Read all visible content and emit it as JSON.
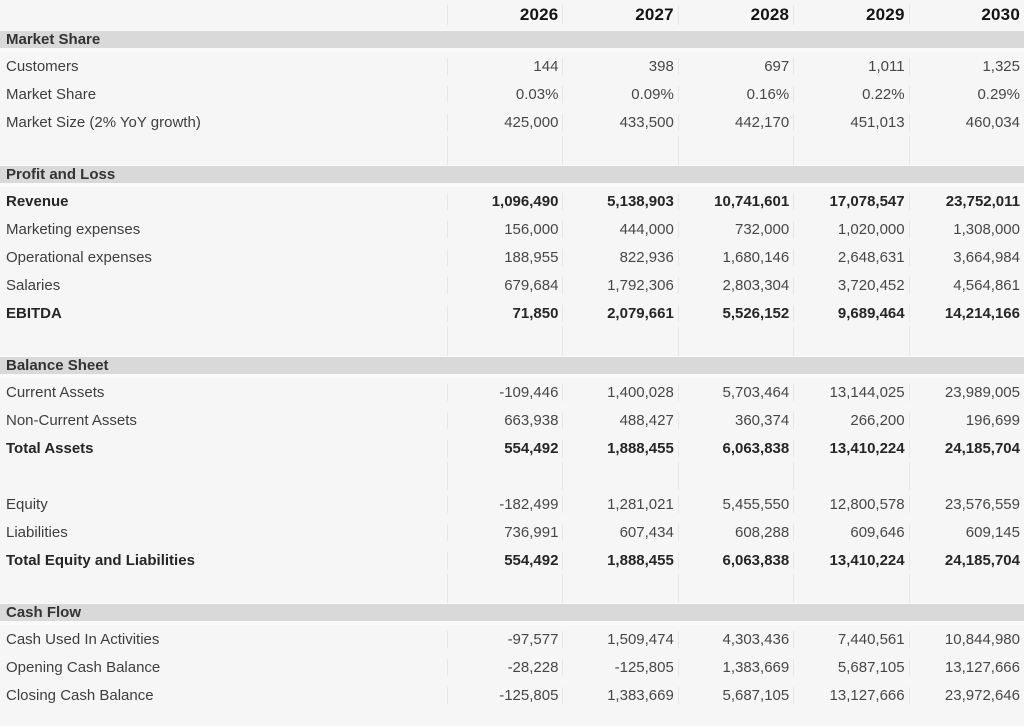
{
  "colors": {
    "row_bg": "#f6f6f7",
    "band_bg": "#d9d9d9",
    "band_sep": "#fafafa",
    "grid_line": "#e7e7e7",
    "text_heading": "#141414",
    "text_band": "#333333",
    "text_label": "#3e3e3e",
    "text_value": "#474747",
    "text_heading_row": "#262626"
  },
  "table": {
    "columns": [
      "2026",
      "2027",
      "2028",
      "2029",
      "2030"
    ],
    "rows": [
      {
        "type": "header"
      },
      {
        "type": "band",
        "label": "Market Share"
      },
      {
        "type": "data",
        "bold": false,
        "label": "Customers",
        "values": [
          "144",
          "398",
          "697",
          "1,011",
          "1,325"
        ]
      },
      {
        "type": "data",
        "bold": false,
        "label": "Market Share",
        "values": [
          "0.03%",
          "0.09%",
          "0.16%",
          "0.22%",
          "0.29%"
        ]
      },
      {
        "type": "data",
        "bold": false,
        "label": "Market Size (2% YoY growth)",
        "values": [
          "425,000",
          "433,500",
          "442,170",
          "451,013",
          "460,034"
        ]
      },
      {
        "type": "gap"
      },
      {
        "type": "band",
        "label": "Profit and Loss"
      },
      {
        "type": "data",
        "bold": true,
        "label": "Revenue",
        "values": [
          "1,096,490",
          "5,138,903",
          "10,741,601",
          "17,078,547",
          "23,752,011"
        ]
      },
      {
        "type": "data",
        "bold": false,
        "label": "Marketing expenses",
        "values": [
          "156,000",
          "444,000",
          "732,000",
          "1,020,000",
          "1,308,000"
        ]
      },
      {
        "type": "data",
        "bold": false,
        "label": "Operational expenses",
        "values": [
          "188,955",
          "822,936",
          "1,680,146",
          "2,648,631",
          "3,664,984"
        ]
      },
      {
        "type": "data",
        "bold": false,
        "label": "Salaries",
        "values": [
          "679,684",
          "1,792,306",
          "2,803,304",
          "3,720,452",
          "4,564,861"
        ]
      },
      {
        "type": "data",
        "bold": true,
        "label": "EBITDA",
        "values": [
          "71,850",
          "2,079,661",
          "5,526,152",
          "9,689,464",
          "14,214,166"
        ]
      },
      {
        "type": "gap"
      },
      {
        "type": "band",
        "label": "Balance Sheet"
      },
      {
        "type": "data",
        "bold": false,
        "label": "Current Assets",
        "values": [
          "-109,446",
          "1,400,028",
          "5,703,464",
          "13,144,025",
          "23,989,005"
        ]
      },
      {
        "type": "data",
        "bold": false,
        "label": "Non-Current Assets",
        "values": [
          "663,938",
          "488,427",
          "360,374",
          "266,200",
          "196,699"
        ]
      },
      {
        "type": "data",
        "bold": true,
        "label": "Total Assets",
        "values": [
          "554,492",
          "1,888,455",
          "6,063,838",
          "13,410,224",
          "24,185,704"
        ]
      },
      {
        "type": "empty"
      },
      {
        "type": "data",
        "bold": false,
        "label": "Equity",
        "values": [
          "-182,499",
          "1,281,021",
          "5,455,550",
          "12,800,578",
          "23,576,559"
        ]
      },
      {
        "type": "data",
        "bold": false,
        "label": "Liabilities",
        "values": [
          "736,991",
          "607,434",
          "608,288",
          "609,646",
          "609,145"
        ]
      },
      {
        "type": "data",
        "bold": true,
        "label": "Total Equity and Liabilities",
        "values": [
          "554,492",
          "1,888,455",
          "6,063,838",
          "13,410,224",
          "24,185,704"
        ]
      },
      {
        "type": "gap"
      },
      {
        "type": "band",
        "label": "Cash Flow"
      },
      {
        "type": "data",
        "bold": false,
        "label": "Cash Used In Activities",
        "values": [
          "-97,577",
          "1,509,474",
          "4,303,436",
          "7,440,561",
          "10,844,980"
        ]
      },
      {
        "type": "data",
        "bold": false,
        "label": "Opening Cash Balance",
        "values": [
          "-28,228",
          "-125,805",
          "1,383,669",
          "5,687,105",
          "13,127,666"
        ]
      },
      {
        "type": "data",
        "bold": false,
        "label": "Closing Cash Balance",
        "values": [
          "-125,805",
          "1,383,669",
          "5,687,105",
          "13,127,666",
          "23,972,646"
        ]
      }
    ]
  }
}
